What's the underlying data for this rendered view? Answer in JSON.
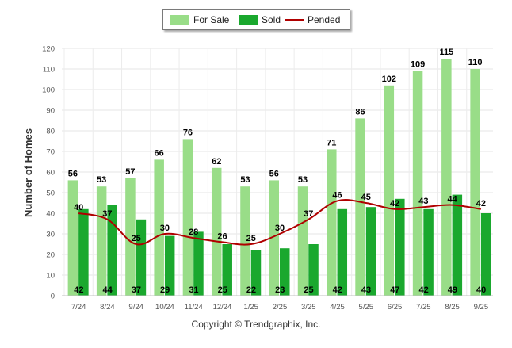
{
  "chart_data": {
    "type": "bar",
    "title": "",
    "xlabel": "",
    "ylabel": "Number of Homes",
    "ylim": [
      0,
      120
    ],
    "yticks": [
      0,
      10,
      20,
      30,
      40,
      50,
      60,
      70,
      80,
      90,
      100,
      110,
      120
    ],
    "grid": true,
    "legend_position": "top-center",
    "categories": [
      "7/24",
      "8/24",
      "9/24",
      "10/24",
      "11/24",
      "12/24",
      "1/25",
      "2/25",
      "3/25",
      "4/25",
      "5/25",
      "6/25",
      "7/25",
      "8/25",
      "9/25"
    ],
    "series": [
      {
        "name": "For Sale",
        "kind": "bar",
        "color": "#99dd88",
        "values": [
          56,
          53,
          57,
          66,
          76,
          62,
          53,
          56,
          53,
          71,
          86,
          102,
          109,
          115,
          110
        ]
      },
      {
        "name": "Sold",
        "kind": "bar",
        "color": "#1aa82e",
        "values": [
          42,
          44,
          37,
          29,
          31,
          25,
          22,
          23,
          25,
          42,
          43,
          47,
          42,
          49,
          40
        ]
      },
      {
        "name": "Pended",
        "kind": "line",
        "color": "#b00000",
        "values": [
          40,
          37,
          25,
          30,
          28,
          26,
          25,
          30,
          37,
          46,
          45,
          42,
          43,
          44,
          42
        ]
      }
    ]
  },
  "footer": {
    "copyright": "Copyright © Trendgraphix, Inc."
  }
}
